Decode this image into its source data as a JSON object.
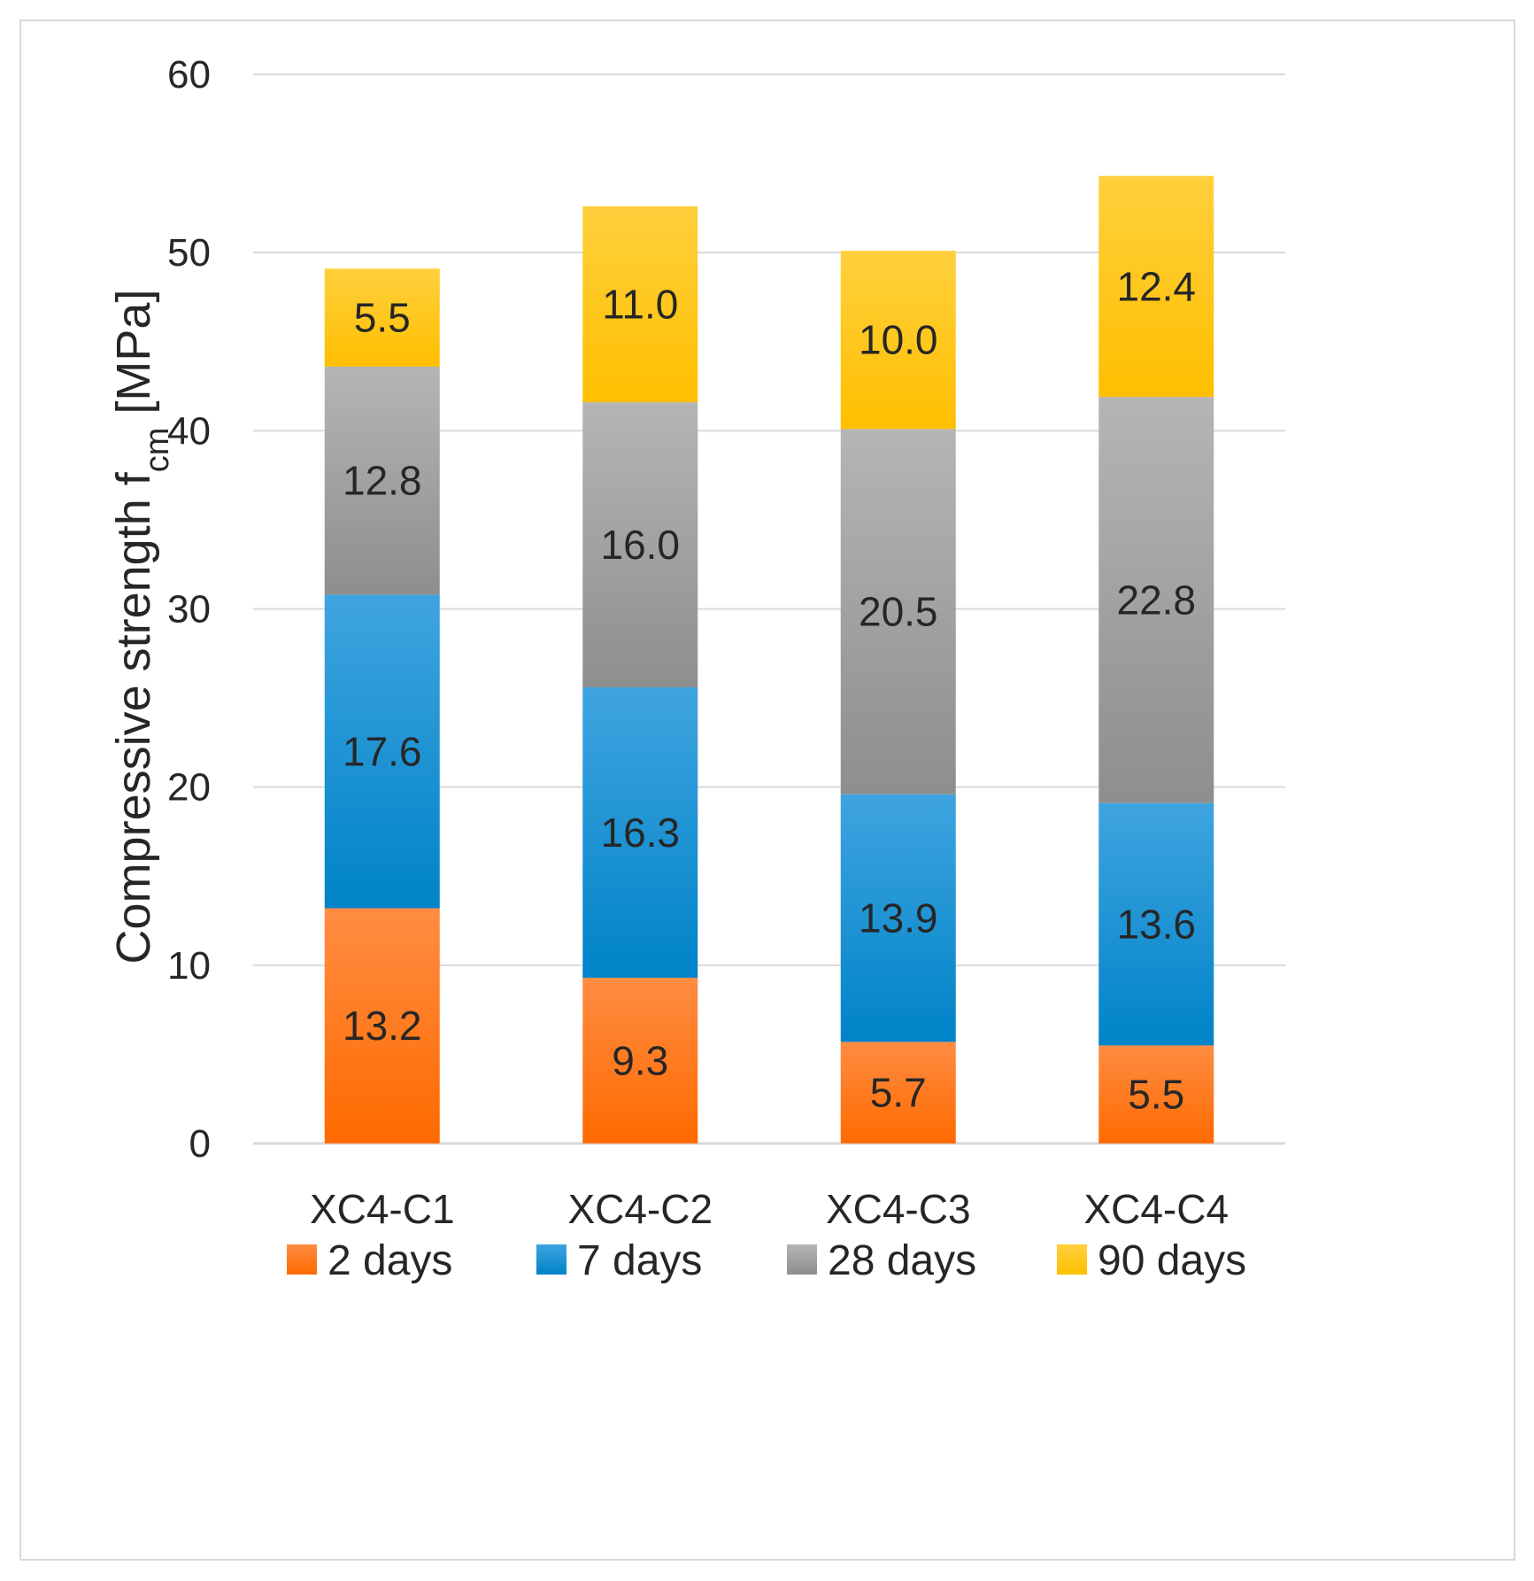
{
  "chart_data": {
    "type": "bar",
    "stacked": true,
    "title": "",
    "xlabel": "",
    "ylabel": {
      "main": "Compressive strength f",
      "subscript": "cm",
      "unit": " [MPa]"
    },
    "ylim": [
      0,
      60
    ],
    "yticks": [
      0,
      10,
      20,
      30,
      40,
      50,
      60
    ],
    "grid": true,
    "legend_position": "bottom",
    "categories": [
      "XC4-C1",
      "XC4-C2",
      "XC4-C3",
      "XC4-C4"
    ],
    "series": [
      {
        "name": "2 days",
        "color_top": "#FF8C42",
        "color_bottom": "#FF6A00",
        "values": [
          13.2,
          9.3,
          5.7,
          5.5
        ]
      },
      {
        "name": "7 days",
        "color_top": "#3FA4E0",
        "color_bottom": "#0083C8",
        "values": [
          17.6,
          16.3,
          13.9,
          13.6
        ]
      },
      {
        "name": "28 days",
        "color_top": "#B5B5B5",
        "color_bottom": "#8E8E8E",
        "values": [
          12.8,
          16.0,
          20.5,
          22.8
        ]
      },
      {
        "name": "90 days",
        "color_top": "#FFD03D",
        "color_bottom": "#FFBF00",
        "values": [
          5.5,
          11.0,
          10.0,
          12.4
        ]
      }
    ],
    "value_labels": [
      [
        "13.2",
        "9.3",
        "5.7",
        "5.5"
      ],
      [
        "17.6",
        "16.3",
        "13.9",
        "13.6"
      ],
      [
        "12.8",
        "16.0",
        "20.5",
        "22.8"
      ],
      [
        "5.5",
        "11.0",
        "10.0",
        "12.4"
      ]
    ]
  }
}
